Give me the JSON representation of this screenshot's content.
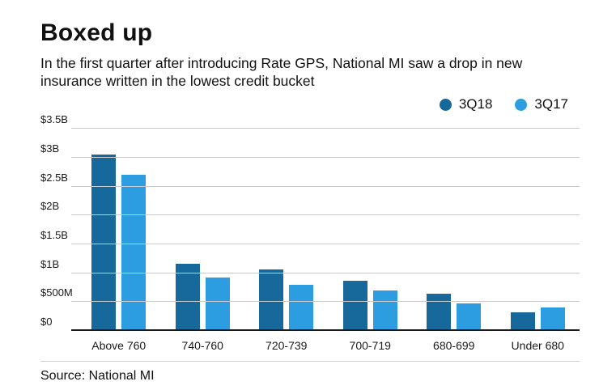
{
  "title": "Boxed up",
  "subtitle": "In the first quarter after introducing Rate GPS, National MI saw a drop in new insurance written in the lowest credit bucket",
  "source": "Source: National MI",
  "legend": [
    {
      "label": "3Q18",
      "color": "#17699c"
    },
    {
      "label": "3Q17",
      "color": "#2b9de0"
    }
  ],
  "colors": {
    "series_3q18": "#17699c",
    "series_3q17": "#2b9de0",
    "gridline": "#cbcbcb",
    "axis": "#1a1a1a"
  },
  "chart_data": {
    "type": "bar",
    "title": "Boxed up",
    "subtitle": "In the first quarter after introducing Rate GPS, National MI saw a drop in new insurance written in the lowest credit bucket",
    "unit": "billions USD (new insurance written)",
    "categories": [
      "Above 760",
      "740-760",
      "720-739",
      "700-719",
      "680-699",
      "Under 680"
    ],
    "series": [
      {
        "name": "3Q18",
        "color": "#17699c",
        "values": [
          3.05,
          1.15,
          1.05,
          0.85,
          0.62,
          0.3
        ]
      },
      {
        "name": "3Q17",
        "color": "#2b9de0",
        "values": [
          2.7,
          0.9,
          0.78,
          0.68,
          0.45,
          0.38
        ]
      }
    ],
    "xlabel": "",
    "ylabel": "",
    "ylim": [
      0,
      3.5
    ],
    "yticks": [
      0,
      0.5,
      1,
      1.5,
      2,
      2.5,
      3,
      3.5
    ],
    "ytick_labels": [
      "$0",
      "$500M",
      "$1B",
      "$1.5B",
      "$2B",
      "$2.5B",
      "$3B",
      "$3.5B"
    ],
    "grid": true,
    "legend_position": "top-right",
    "source": "Source: National MI"
  }
}
